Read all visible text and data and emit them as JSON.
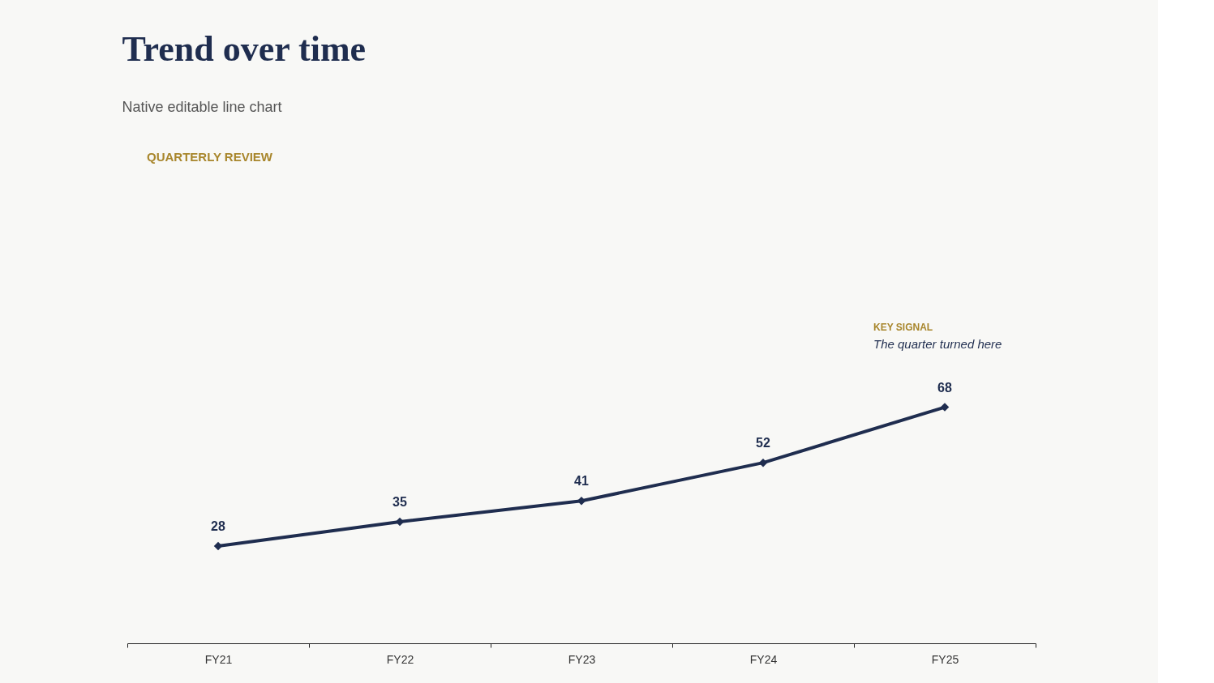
{
  "chart_data": {
    "type": "line",
    "title": "Trend over time",
    "subtitle": "Native editable line chart",
    "annotations": [
      "QUARTERLY REVIEW",
      "KEY SIGNAL",
      "The quarter turned here"
    ],
    "categories": [
      "FY21",
      "FY22",
      "FY23",
      "FY24",
      "FY25"
    ],
    "series": [
      {
        "color": "#1f2d4f",
        "values": [
          28,
          35,
          41,
          52,
          68
        ]
      }
    ],
    "data_labels": true,
    "marker": "diamond",
    "line_style": "solid",
    "grid": false,
    "legend": false,
    "tick_labels": "x"
  }
}
